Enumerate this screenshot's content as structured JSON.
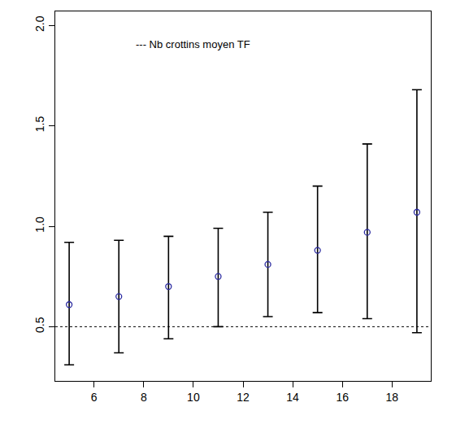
{
  "chart_data": {
    "type": "scatter",
    "x": [
      5,
      7,
      9,
      11,
      13,
      15,
      17,
      19
    ],
    "values": [
      0.61,
      0.65,
      0.7,
      0.75,
      0.81,
      0.88,
      0.97,
      1.07
    ],
    "error_lower": [
      0.31,
      0.37,
      0.44,
      0.5,
      0.55,
      0.57,
      0.54,
      0.47
    ],
    "error_upper": [
      0.92,
      0.93,
      0.95,
      0.99,
      1.07,
      1.2,
      1.41,
      1.68
    ],
    "color": "#2a2aa0",
    "marker": "circle-open",
    "reference_line": {
      "value": 0.5,
      "label": "--- Nb crottins moyen TF",
      "line_style": "dot"
    },
    "xlim": [
      4.44,
      19.56
    ],
    "xticks": [
      6,
      8,
      10,
      12,
      14,
      16,
      18
    ],
    "ylim": [
      0.23,
      2.07
    ],
    "yticks": [
      {
        "value": 0.5,
        "label": "0.5"
      },
      {
        "value": 1.0,
        "label": "1.0"
      },
      {
        "value": 1.5,
        "label": "1.5"
      },
      {
        "value": 2.0,
        "label": "2.0"
      }
    ],
    "grid": false
  }
}
